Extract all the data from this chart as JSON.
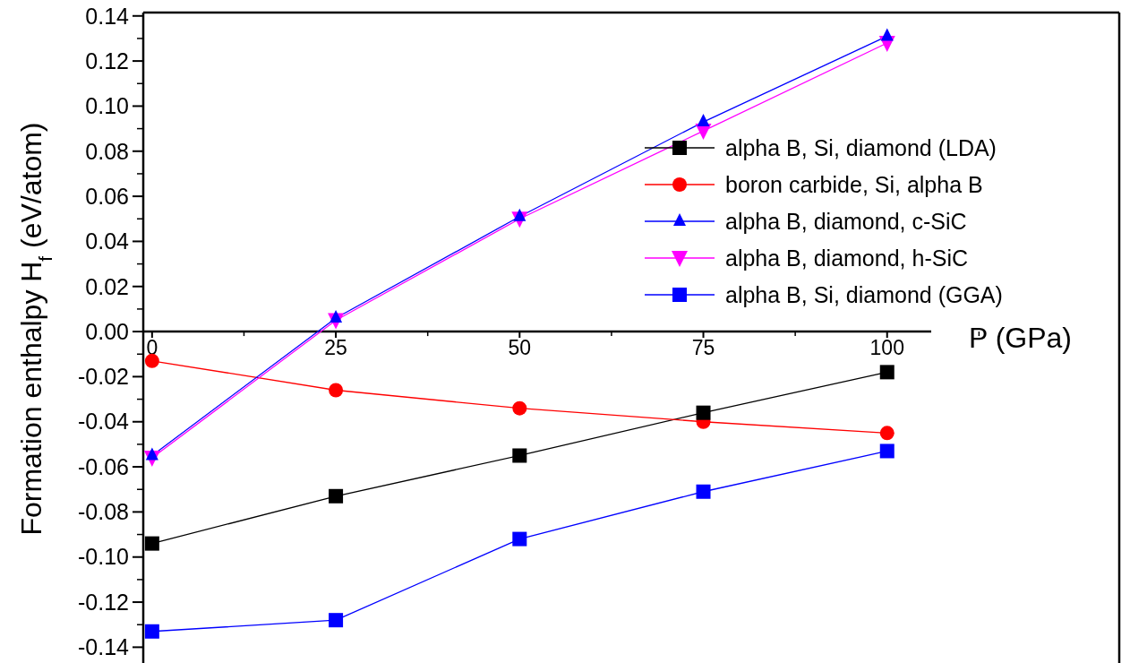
{
  "chart_data": {
    "type": "line",
    "xlabel": "P (GPa)",
    "ylabel": "Formation enthalpy H$_{f}$ (eV/atom)",
    "x": [
      0,
      25,
      50,
      75,
      100
    ],
    "xlim": [
      -1.2,
      106
    ],
    "xticks": [
      0,
      25,
      50,
      75,
      100
    ],
    "ylim": [
      -0.147,
      0.1415
    ],
    "yticks": [
      {
        "value": -0.14,
        "label": "-0.14"
      },
      {
        "value": -0.12,
        "label": "-0.12"
      },
      {
        "value": -0.1,
        "label": "-0.10"
      },
      {
        "value": -0.08,
        "label": "-0.08"
      },
      {
        "value": -0.06,
        "label": "-0.06"
      },
      {
        "value": -0.04,
        "label": "-0.04"
      },
      {
        "value": -0.02,
        "label": "-0.02"
      },
      {
        "value": 0,
        "label": "0.00"
      },
      {
        "value": 0.02,
        "label": "0.02"
      },
      {
        "value": 0.04,
        "label": "0.04"
      },
      {
        "value": 0.06,
        "label": "0.06"
      },
      {
        "value": 0.08,
        "label": "0.08"
      },
      {
        "value": 0.1,
        "label": "0.10"
      },
      {
        "value": 0.12,
        "label": "0.12"
      },
      {
        "value": 0.14,
        "label": "0.14"
      }
    ],
    "legend": "right",
    "grid": false,
    "line_style": "solid",
    "series": [
      {
        "name": "alpha B, Si, diamond (LDA)",
        "color": "#000000",
        "marker": "square",
        "values": [
          -0.094,
          -0.073,
          -0.055,
          -0.036,
          -0.018
        ]
      },
      {
        "name": "boron carbide, Si, alpha B",
        "color": "#ff0000",
        "marker": "circle",
        "values": [
          -0.013,
          -0.026,
          -0.034,
          -0.04,
          -0.045
        ]
      },
      {
        "name": "alpha B, diamond, c-SiC",
        "color": "#0000ff",
        "marker": "triangle",
        "values": [
          -0.055,
          0.006,
          0.051,
          0.093,
          0.131
        ]
      },
      {
        "name": "alpha B, diamond, h-SiC",
        "color": "#ff00ff",
        "marker": "triangle-down",
        "values": [
          -0.056,
          0.005,
          0.05,
          0.089,
          0.128
        ]
      },
      {
        "name": "alpha B, Si, diamond (GGA)",
        "color": "#0000ff",
        "marker": "square",
        "values": [
          -0.133,
          -0.128,
          -0.092,
          -0.071,
          -0.053
        ]
      }
    ]
  }
}
